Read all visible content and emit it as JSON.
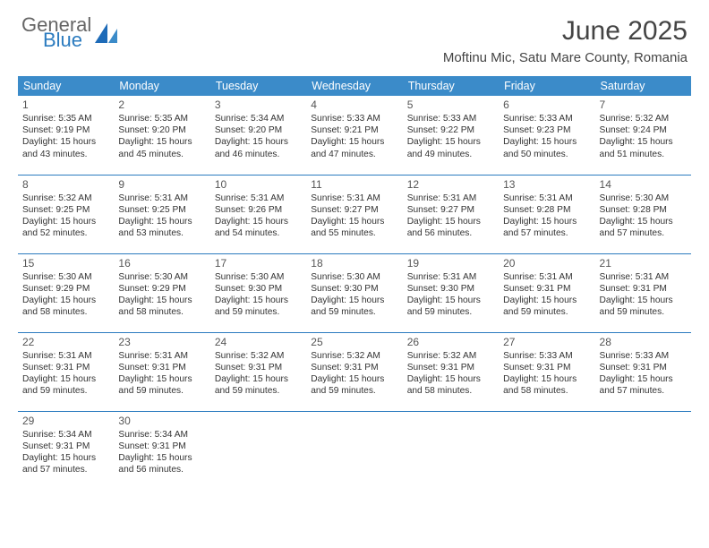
{
  "brand": {
    "word1": "General",
    "word2": "Blue"
  },
  "title": "June 2025",
  "location": "Moftinu Mic, Satu Mare County, Romania",
  "colors": {
    "header_bg": "#3b8bc9",
    "header_text": "#ffffff",
    "rule": "#2b7bbf",
    "brand_blue": "#2b7bbf",
    "text": "#333333"
  },
  "weekdays": [
    "Sunday",
    "Monday",
    "Tuesday",
    "Wednesday",
    "Thursday",
    "Friday",
    "Saturday"
  ],
  "weeks": [
    [
      {
        "n": "1",
        "sr": "Sunrise: 5:35 AM",
        "ss": "Sunset: 9:19 PM",
        "d1": "Daylight: 15 hours",
        "d2": "and 43 minutes."
      },
      {
        "n": "2",
        "sr": "Sunrise: 5:35 AM",
        "ss": "Sunset: 9:20 PM",
        "d1": "Daylight: 15 hours",
        "d2": "and 45 minutes."
      },
      {
        "n": "3",
        "sr": "Sunrise: 5:34 AM",
        "ss": "Sunset: 9:20 PM",
        "d1": "Daylight: 15 hours",
        "d2": "and 46 minutes."
      },
      {
        "n": "4",
        "sr": "Sunrise: 5:33 AM",
        "ss": "Sunset: 9:21 PM",
        "d1": "Daylight: 15 hours",
        "d2": "and 47 minutes."
      },
      {
        "n": "5",
        "sr": "Sunrise: 5:33 AM",
        "ss": "Sunset: 9:22 PM",
        "d1": "Daylight: 15 hours",
        "d2": "and 49 minutes."
      },
      {
        "n": "6",
        "sr": "Sunrise: 5:33 AM",
        "ss": "Sunset: 9:23 PM",
        "d1": "Daylight: 15 hours",
        "d2": "and 50 minutes."
      },
      {
        "n": "7",
        "sr": "Sunrise: 5:32 AM",
        "ss": "Sunset: 9:24 PM",
        "d1": "Daylight: 15 hours",
        "d2": "and 51 minutes."
      }
    ],
    [
      {
        "n": "8",
        "sr": "Sunrise: 5:32 AM",
        "ss": "Sunset: 9:25 PM",
        "d1": "Daylight: 15 hours",
        "d2": "and 52 minutes."
      },
      {
        "n": "9",
        "sr": "Sunrise: 5:31 AM",
        "ss": "Sunset: 9:25 PM",
        "d1": "Daylight: 15 hours",
        "d2": "and 53 minutes."
      },
      {
        "n": "10",
        "sr": "Sunrise: 5:31 AM",
        "ss": "Sunset: 9:26 PM",
        "d1": "Daylight: 15 hours",
        "d2": "and 54 minutes."
      },
      {
        "n": "11",
        "sr": "Sunrise: 5:31 AM",
        "ss": "Sunset: 9:27 PM",
        "d1": "Daylight: 15 hours",
        "d2": "and 55 minutes."
      },
      {
        "n": "12",
        "sr": "Sunrise: 5:31 AM",
        "ss": "Sunset: 9:27 PM",
        "d1": "Daylight: 15 hours",
        "d2": "and 56 minutes."
      },
      {
        "n": "13",
        "sr": "Sunrise: 5:31 AM",
        "ss": "Sunset: 9:28 PM",
        "d1": "Daylight: 15 hours",
        "d2": "and 57 minutes."
      },
      {
        "n": "14",
        "sr": "Sunrise: 5:30 AM",
        "ss": "Sunset: 9:28 PM",
        "d1": "Daylight: 15 hours",
        "d2": "and 57 minutes."
      }
    ],
    [
      {
        "n": "15",
        "sr": "Sunrise: 5:30 AM",
        "ss": "Sunset: 9:29 PM",
        "d1": "Daylight: 15 hours",
        "d2": "and 58 minutes."
      },
      {
        "n": "16",
        "sr": "Sunrise: 5:30 AM",
        "ss": "Sunset: 9:29 PM",
        "d1": "Daylight: 15 hours",
        "d2": "and 58 minutes."
      },
      {
        "n": "17",
        "sr": "Sunrise: 5:30 AM",
        "ss": "Sunset: 9:30 PM",
        "d1": "Daylight: 15 hours",
        "d2": "and 59 minutes."
      },
      {
        "n": "18",
        "sr": "Sunrise: 5:30 AM",
        "ss": "Sunset: 9:30 PM",
        "d1": "Daylight: 15 hours",
        "d2": "and 59 minutes."
      },
      {
        "n": "19",
        "sr": "Sunrise: 5:31 AM",
        "ss": "Sunset: 9:30 PM",
        "d1": "Daylight: 15 hours",
        "d2": "and 59 minutes."
      },
      {
        "n": "20",
        "sr": "Sunrise: 5:31 AM",
        "ss": "Sunset: 9:31 PM",
        "d1": "Daylight: 15 hours",
        "d2": "and 59 minutes."
      },
      {
        "n": "21",
        "sr": "Sunrise: 5:31 AM",
        "ss": "Sunset: 9:31 PM",
        "d1": "Daylight: 15 hours",
        "d2": "and 59 minutes."
      }
    ],
    [
      {
        "n": "22",
        "sr": "Sunrise: 5:31 AM",
        "ss": "Sunset: 9:31 PM",
        "d1": "Daylight: 15 hours",
        "d2": "and 59 minutes."
      },
      {
        "n": "23",
        "sr": "Sunrise: 5:31 AM",
        "ss": "Sunset: 9:31 PM",
        "d1": "Daylight: 15 hours",
        "d2": "and 59 minutes."
      },
      {
        "n": "24",
        "sr": "Sunrise: 5:32 AM",
        "ss": "Sunset: 9:31 PM",
        "d1": "Daylight: 15 hours",
        "d2": "and 59 minutes."
      },
      {
        "n": "25",
        "sr": "Sunrise: 5:32 AM",
        "ss": "Sunset: 9:31 PM",
        "d1": "Daylight: 15 hours",
        "d2": "and 59 minutes."
      },
      {
        "n": "26",
        "sr": "Sunrise: 5:32 AM",
        "ss": "Sunset: 9:31 PM",
        "d1": "Daylight: 15 hours",
        "d2": "and 58 minutes."
      },
      {
        "n": "27",
        "sr": "Sunrise: 5:33 AM",
        "ss": "Sunset: 9:31 PM",
        "d1": "Daylight: 15 hours",
        "d2": "and 58 minutes."
      },
      {
        "n": "28",
        "sr": "Sunrise: 5:33 AM",
        "ss": "Sunset: 9:31 PM",
        "d1": "Daylight: 15 hours",
        "d2": "and 57 minutes."
      }
    ],
    [
      {
        "n": "29",
        "sr": "Sunrise: 5:34 AM",
        "ss": "Sunset: 9:31 PM",
        "d1": "Daylight: 15 hours",
        "d2": "and 57 minutes."
      },
      {
        "n": "30",
        "sr": "Sunrise: 5:34 AM",
        "ss": "Sunset: 9:31 PM",
        "d1": "Daylight: 15 hours",
        "d2": "and 56 minutes."
      },
      null,
      null,
      null,
      null,
      null
    ]
  ]
}
